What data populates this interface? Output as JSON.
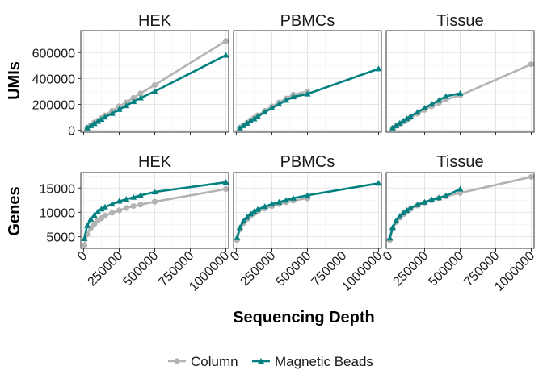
{
  "chart_data": {
    "type": "scatter",
    "xlabel": "Sequencing Depth",
    "x_ticks": [
      0,
      250000,
      500000,
      750000,
      1000000
    ],
    "x_tick_labels": [
      "0",
      "250000",
      "500000",
      "750000",
      "1000000"
    ],
    "xlim": [
      -20000,
      1020000
    ],
    "grid": true,
    "legend": "bottom",
    "series_styles": [
      {
        "name": "Column",
        "color": "#b3b3b3",
        "marker": "circle"
      },
      {
        "name": "Magnetic Beads",
        "color": "#008080",
        "marker": "triangle"
      }
    ],
    "rows": [
      {
        "ylabel": "UMIs",
        "ylim": [
          -15000,
          770000
        ],
        "y_ticks": [
          0,
          200000,
          400000,
          600000
        ],
        "y_tick_labels": [
          "0",
          "200000",
          "400000",
          "600000"
        ],
        "panels": [
          {
            "title": "HEK",
            "series": [
              {
                "name": "Column",
                "x": [
                  25000,
                  50000,
                  75000,
                  100000,
                  125000,
                  150000,
                  200000,
                  250000,
                  300000,
                  350000,
                  400000,
                  500000,
                  1000000
                ],
                "y": [
                  20000,
                  40000,
                  60000,
                  75000,
                  95000,
                  115000,
                  150000,
                  185000,
                  215000,
                  250000,
                  285000,
                  350000,
                  690000
                ]
              },
              {
                "name": "Magnetic Beads",
                "x": [
                  25000,
                  50000,
                  75000,
                  100000,
                  125000,
                  150000,
                  200000,
                  250000,
                  300000,
                  350000,
                  400000,
                  500000,
                  1000000
                ],
                "y": [
                  18000,
                  36000,
                  52000,
                  68000,
                  84000,
                  102000,
                  130000,
                  160000,
                  190000,
                  222000,
                  250000,
                  300000,
                  580000
                ]
              }
            ]
          },
          {
            "title": "PBMCs",
            "series": [
              {
                "name": "Column",
                "x": [
                  25000,
                  50000,
                  75000,
                  100000,
                  125000,
                  150000,
                  200000,
                  250000,
                  300000,
                  350000,
                  400000,
                  500000
                ],
                "y": [
                  20000,
                  40000,
                  58000,
                  78000,
                  96000,
                  115000,
                  150000,
                  185000,
                  215000,
                  245000,
                  275000,
                  300000
                ]
              },
              {
                "name": "Magnetic Beads",
                "x": [
                  25000,
                  50000,
                  75000,
                  100000,
                  125000,
                  150000,
                  200000,
                  250000,
                  300000,
                  350000,
                  400000,
                  500000,
                  1000000
                ],
                "y": [
                  18000,
                  36000,
                  54000,
                  72000,
                  88000,
                  106000,
                  140000,
                  172000,
                  202000,
                  232000,
                  258000,
                  280000,
                  475000
                ]
              }
            ]
          },
          {
            "title": "Tissue",
            "series": [
              {
                "name": "Column",
                "x": [
                  25000,
                  50000,
                  75000,
                  100000,
                  125000,
                  150000,
                  200000,
                  250000,
                  300000,
                  350000,
                  400000,
                  500000,
                  1000000
                ],
                "y": [
                  17000,
                  34000,
                  50000,
                  66000,
                  82000,
                  98000,
                  128000,
                  158000,
                  186000,
                  212000,
                  238000,
                  270000,
                  510000
                ]
              },
              {
                "name": "Magnetic Beads",
                "x": [
                  25000,
                  50000,
                  75000,
                  100000,
                  125000,
                  150000,
                  200000,
                  250000,
                  300000,
                  350000,
                  400000,
                  500000
                ],
                "y": [
                  18000,
                  36000,
                  54000,
                  72000,
                  90000,
                  108000,
                  140000,
                  172000,
                  202000,
                  232000,
                  262000,
                  285000
                ]
              }
            ]
          }
        ]
      },
      {
        "ylabel": "Genes",
        "ylim": [
          2600,
          18200
        ],
        "y_ticks": [
          5000,
          10000,
          15000
        ],
        "y_tick_labels": [
          "5000",
          "10000",
          "15000"
        ],
        "panels": [
          {
            "title": "HEK",
            "series": [
              {
                "name": "Column",
                "x": [
                  5000,
                  25000,
                  50000,
                  75000,
                  100000,
                  125000,
                  150000,
                  200000,
                  250000,
                  300000,
                  350000,
                  400000,
                  500000,
                  1000000
                ],
                "y": [
                  3200,
                  5500,
                  6800,
                  7600,
                  8300,
                  8800,
                  9300,
                  9900,
                  10400,
                  10900,
                  11300,
                  11600,
                  12200,
                  14800
                ]
              },
              {
                "name": "Magnetic Beads",
                "x": [
                  5000,
                  25000,
                  50000,
                  75000,
                  100000,
                  125000,
                  150000,
                  200000,
                  250000,
                  300000,
                  350000,
                  400000,
                  500000,
                  1000000
                ],
                "y": [
                  4600,
                  7300,
                  8600,
                  9400,
                  10100,
                  10700,
                  11100,
                  11700,
                  12300,
                  12700,
                  13100,
                  13500,
                  14200,
                  16200
                ]
              }
            ]
          },
          {
            "title": "PBMCs",
            "series": [
              {
                "name": "Column",
                "x": [
                  5000,
                  25000,
                  50000,
                  75000,
                  100000,
                  125000,
                  150000,
                  200000,
                  250000,
                  300000,
                  350000,
                  400000,
                  500000
                ],
                "y": [
                  4300,
                  6500,
                  7800,
                  8600,
                  9300,
                  9800,
                  10200,
                  10800,
                  11300,
                  11700,
                  12100,
                  12400,
                  12900
                ]
              },
              {
                "name": "Magnetic Beads",
                "x": [
                  5000,
                  25000,
                  50000,
                  75000,
                  100000,
                  125000,
                  150000,
                  200000,
                  250000,
                  300000,
                  350000,
                  400000,
                  500000,
                  1000000
                ],
                "y": [
                  4800,
                  6900,
                  8200,
                  9000,
                  9700,
                  10200,
                  10600,
                  11200,
                  11700,
                  12100,
                  12500,
                  12900,
                  13500,
                  16000
                ]
              }
            ]
          },
          {
            "title": "Tissue",
            "series": [
              {
                "name": "Column",
                "x": [
                  5000,
                  25000,
                  50000,
                  75000,
                  100000,
                  125000,
                  150000,
                  200000,
                  250000,
                  300000,
                  350000,
                  400000,
                  500000,
                  1000000
                ],
                "y": [
                  4300,
                  6600,
                  8000,
                  8900,
                  9600,
                  10200,
                  10700,
                  11400,
                  12000,
                  12500,
                  12900,
                  13300,
                  14000,
                  17300
                ]
              },
              {
                "name": "Magnetic Beads",
                "x": [
                  5000,
                  25000,
                  50000,
                  75000,
                  100000,
                  125000,
                  150000,
                  200000,
                  250000,
                  300000,
                  350000,
                  400000,
                  500000
                ],
                "y": [
                  4700,
                  6900,
                  8300,
                  9200,
                  9900,
                  10400,
                  10900,
                  11600,
                  12100,
                  12600,
                  13000,
                  13400,
                  14800
                ]
              }
            ]
          }
        ]
      }
    ]
  }
}
